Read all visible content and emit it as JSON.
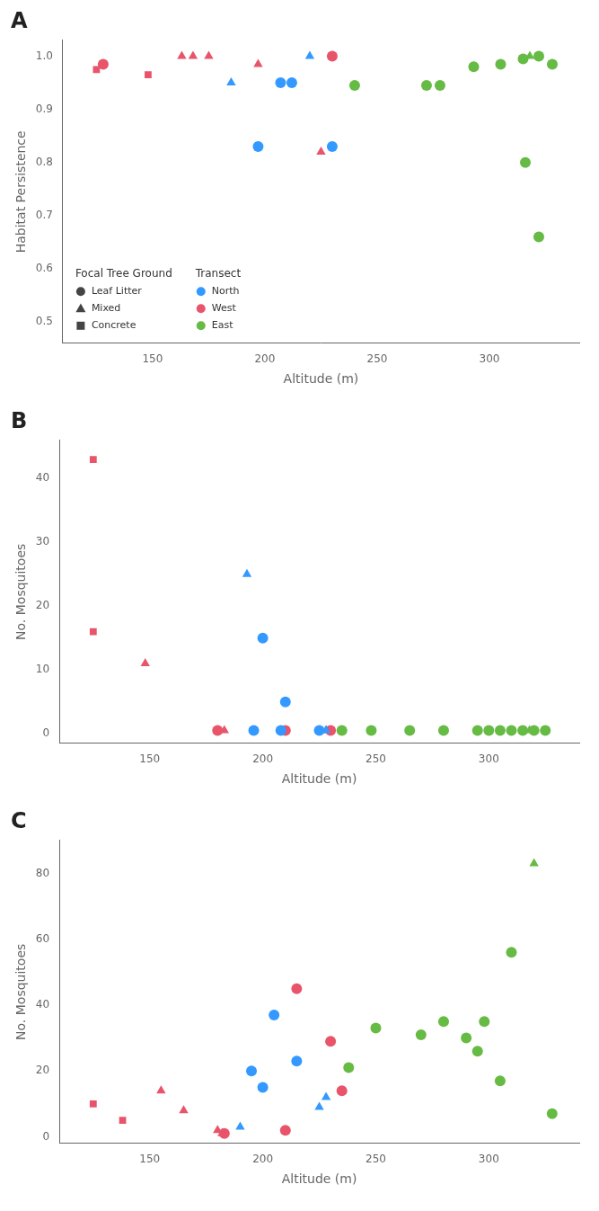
{
  "chart_data": [
    {
      "type": "scatter",
      "title": "A",
      "xlabel": "Altitude (m)",
      "ylabel": "Habitat Persistence",
      "xlim": [
        110,
        340
      ],
      "ylim": [
        0.46,
        1.03
      ],
      "xticks": [
        150,
        200,
        250,
        300
      ],
      "yticks": [
        0.5,
        0.6,
        0.7,
        0.8,
        0.9,
        {
          "value": 1.0,
          "label": "1.0"
        }
      ],
      "grid": false,
      "legend": "lower left",
      "legends": [
        {
          "title": "Focal Tree Ground",
          "entries": [
            {
              "name": "Leaf Litter",
              "marker": "circle",
              "color": "#444444"
            },
            {
              "name": "Mixed",
              "marker": "triangle",
              "color": "#444444"
            },
            {
              "name": "Concrete",
              "marker": "square",
              "color": "#444444"
            }
          ]
        },
        {
          "title": "Transect",
          "entries": [
            {
              "name": "North",
              "marker": "circle",
              "color": "#3399FF"
            },
            {
              "name": "West",
              "marker": "circle",
              "color": "#E8546A"
            },
            {
              "name": "East",
              "marker": "circle",
              "color": "#66BB44"
            }
          ]
        }
      ],
      "series": [
        {
          "name": "North",
          "marker": "circle",
          "color": "#3399FF",
          "x": [
            197,
            207,
            212
          ],
          "values": [
            0.83,
            0.95,
            0.95
          ]
        },
        {
          "name": "North",
          "marker": "circle",
          "color": "#3399FF",
          "x": [
            230
          ],
          "values": [
            0.83
          ]
        },
        {
          "name": "North",
          "marker": "triangle",
          "color": "#3399FF",
          "x": [
            185,
            220
          ],
          "values": [
            0.95,
            1.0
          ]
        },
        {
          "name": "West",
          "marker": "circle",
          "color": "#E8546A",
          "x": [
            128,
            230
          ],
          "values": [
            0.985,
            1.0
          ]
        },
        {
          "name": "West",
          "marker": "triangle",
          "color": "#E8546A",
          "x": [
            163,
            168,
            175,
            197,
            225
          ],
          "values": [
            1.0,
            1.0,
            1.0,
            0.985,
            0.82
          ]
        },
        {
          "name": "West",
          "marker": "square",
          "color": "#E8546A",
          "x": [
            125,
            148
          ],
          "values": [
            0.975,
            0.965
          ]
        },
        {
          "name": "East",
          "marker": "circle",
          "color": "#66BB44",
          "x": [
            240,
            272,
            278,
            293,
            305,
            315,
            322,
            328,
            316,
            322
          ],
          "values": [
            0.945,
            0.945,
            0.945,
            0.98,
            0.985,
            0.995,
            1.0,
            0.985,
            0.8,
            0.66
          ]
        },
        {
          "name": "East",
          "marker": "triangle",
          "color": "#66BB44",
          "x": [
            318
          ],
          "values": [
            1.0
          ]
        }
      ]
    },
    {
      "type": "scatter",
      "title": "B",
      "xlabel": "Altitude (m)",
      "ylabel": "No. Mosquitoes",
      "xlim": [
        110,
        340
      ],
      "ylim": [
        -1.5,
        46
      ],
      "xticks": [
        150,
        200,
        250,
        300
      ],
      "yticks": [
        0,
        10,
        20,
        30,
        40
      ],
      "grid": false,
      "series": [
        {
          "name": "West",
          "marker": "square",
          "color": "#E8546A",
          "x": [
            125,
            125
          ],
          "values": [
            43,
            16
          ]
        },
        {
          "name": "West",
          "marker": "triangle",
          "color": "#E8546A",
          "x": [
            148,
            180,
            183
          ],
          "values": [
            11,
            0.5,
            0.5
          ]
        },
        {
          "name": "West",
          "marker": "circle",
          "color": "#E8546A",
          "x": [
            180
          ],
          "values": [
            0.5
          ]
        },
        {
          "name": "West",
          "marker": "circle",
          "color": "#E8546A",
          "x": [
            210,
            230
          ],
          "values": [
            0.5,
            0.5
          ]
        },
        {
          "name": "West",
          "marker": "triangle",
          "color": "#E8546A",
          "x": [
            228
          ],
          "values": [
            0.5
          ]
        },
        {
          "name": "North",
          "marker": "triangle",
          "color": "#3399FF",
          "x": [
            193
          ],
          "values": [
            25
          ]
        },
        {
          "name": "North",
          "marker": "circle",
          "color": "#3399FF",
          "x": [
            200,
            210,
            196,
            208
          ],
          "values": [
            15,
            5,
            0.5,
            0.5
          ]
        },
        {
          "name": "North",
          "marker": "circle",
          "color": "#3399FF",
          "x": [
            225
          ],
          "values": [
            0.5
          ]
        },
        {
          "name": "North",
          "marker": "triangle",
          "color": "#3399FF",
          "x": [
            228
          ],
          "values": [
            0.5
          ]
        },
        {
          "name": "East",
          "marker": "circle",
          "color": "#66BB44",
          "x": [
            235,
            248,
            265,
            280,
            295,
            300,
            305,
            310,
            315,
            320,
            325
          ],
          "values": [
            0.5,
            0.5,
            0.5,
            0.5,
            0.5,
            0.5,
            0.5,
            0.5,
            0.5,
            0.5,
            0.5
          ]
        },
        {
          "name": "East",
          "marker": "triangle",
          "color": "#66BB44",
          "x": [
            318
          ],
          "values": [
            0.5
          ]
        }
      ]
    },
    {
      "type": "scatter",
      "title": "C",
      "xlabel": "Altitude (m)",
      "ylabel": "No. Mosquitoes",
      "xlim": [
        110,
        340
      ],
      "ylim": [
        -2,
        90
      ],
      "xticks": [
        150,
        200,
        250,
        300
      ],
      "yticks": [
        0,
        20,
        40,
        60,
        80
      ],
      "grid": false,
      "series": [
        {
          "name": "West",
          "marker": "square",
          "color": "#E8546A",
          "x": [
            125,
            138
          ],
          "values": [
            10,
            5
          ]
        },
        {
          "name": "West",
          "marker": "triangle",
          "color": "#E8546A",
          "x": [
            155,
            165,
            180,
            182
          ],
          "values": [
            14,
            8,
            2,
            1
          ]
        },
        {
          "name": "West",
          "marker": "circle",
          "color": "#E8546A",
          "x": [
            183,
            210
          ],
          "values": [
            1,
            2
          ]
        },
        {
          "name": "West",
          "marker": "circle",
          "color": "#E8546A",
          "x": [
            215,
            230,
            235
          ],
          "values": [
            45,
            29,
            14
          ]
        },
        {
          "name": "North",
          "marker": "triangle",
          "color": "#3399FF",
          "x": [
            190,
            225,
            228
          ],
          "values": [
            3,
            9,
            12
          ]
        },
        {
          "name": "North",
          "marker": "circle",
          "color": "#3399FF",
          "x": [
            195,
            200,
            205,
            215
          ],
          "values": [
            20,
            15,
            37,
            23
          ]
        },
        {
          "name": "East",
          "marker": "circle",
          "color": "#66BB44",
          "x": [
            238,
            250,
            270,
            280,
            290,
            295,
            298,
            305,
            310,
            328
          ],
          "values": [
            21,
            33,
            31,
            35,
            30,
            26,
            35,
            17,
            56,
            7
          ]
        },
        {
          "name": "East",
          "marker": "triangle",
          "color": "#66BB44",
          "x": [
            320
          ],
          "values": [
            83
          ]
        }
      ]
    }
  ]
}
